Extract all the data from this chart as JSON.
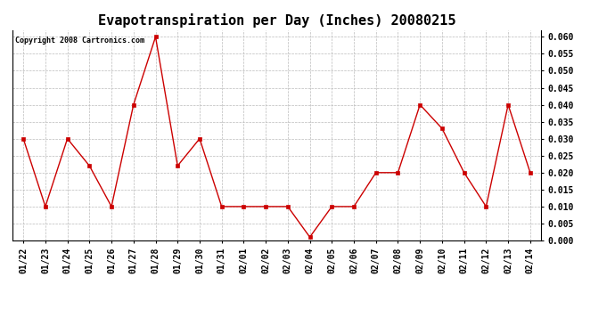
{
  "title": "Evapotranspiration per Day (Inches) 20080215",
  "copyright": "Copyright 2008 Cartronics.com",
  "x_labels": [
    "01/22",
    "01/23",
    "01/24",
    "01/25",
    "01/26",
    "01/27",
    "01/28",
    "01/29",
    "01/30",
    "01/31",
    "02/01",
    "02/02",
    "02/03",
    "02/04",
    "02/05",
    "02/06",
    "02/07",
    "02/08",
    "02/09",
    "02/10",
    "02/11",
    "02/12",
    "02/13",
    "02/14"
  ],
  "y_values": [
    0.03,
    0.01,
    0.03,
    0.022,
    0.01,
    0.04,
    0.06,
    0.022,
    0.03,
    0.01,
    0.01,
    0.01,
    0.01,
    0.001,
    0.01,
    0.01,
    0.02,
    0.02,
    0.04,
    0.033,
    0.02,
    0.01,
    0.04,
    0.02
  ],
  "line_color": "#cc0000",
  "marker": "s",
  "marker_size": 2.5,
  "ylim": [
    0.0,
    0.062
  ],
  "yticks": [
    0.0,
    0.005,
    0.01,
    0.015,
    0.02,
    0.025,
    0.03,
    0.035,
    0.04,
    0.045,
    0.05,
    0.055,
    0.06
  ],
  "background_color": "#ffffff",
  "grid_color": "#bbbbbb",
  "title_fontsize": 11,
  "label_fontsize": 7,
  "copyright_fontsize": 6
}
